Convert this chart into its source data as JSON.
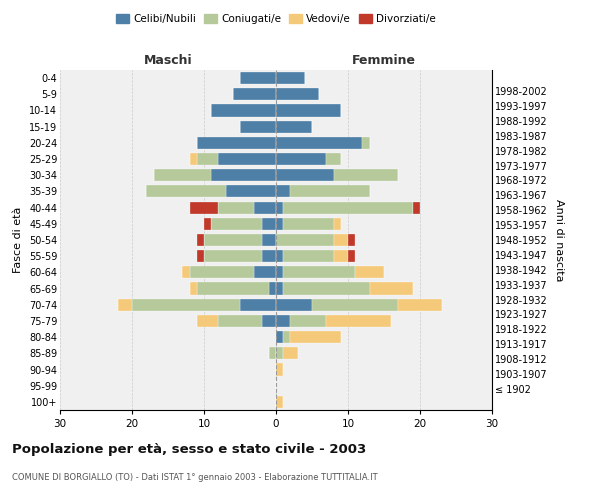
{
  "age_groups": [
    "100+",
    "95-99",
    "90-94",
    "85-89",
    "80-84",
    "75-79",
    "70-74",
    "65-69",
    "60-64",
    "55-59",
    "50-54",
    "45-49",
    "40-44",
    "35-39",
    "30-34",
    "25-29",
    "20-24",
    "15-19",
    "10-14",
    "5-9",
    "0-4"
  ],
  "birth_years": [
    "≤ 1902",
    "1903-1907",
    "1908-1912",
    "1913-1917",
    "1918-1922",
    "1923-1927",
    "1928-1932",
    "1933-1937",
    "1938-1942",
    "1943-1947",
    "1948-1952",
    "1953-1957",
    "1958-1962",
    "1963-1967",
    "1968-1972",
    "1973-1977",
    "1978-1982",
    "1983-1987",
    "1988-1992",
    "1993-1997",
    "1998-2002"
  ],
  "maschi": {
    "celibi": [
      0,
      0,
      0,
      0,
      0,
      2,
      5,
      1,
      3,
      2,
      2,
      2,
      3,
      7,
      9,
      8,
      11,
      5,
      9,
      6,
      5
    ],
    "coniugati": [
      0,
      0,
      0,
      1,
      0,
      6,
      15,
      10,
      9,
      8,
      8,
      7,
      5,
      11,
      8,
      3,
      0,
      0,
      0,
      0,
      0
    ],
    "vedovi": [
      0,
      0,
      0,
      0,
      0,
      3,
      2,
      1,
      1,
      0,
      0,
      0,
      0,
      0,
      0,
      1,
      0,
      0,
      0,
      0,
      0
    ],
    "divorziati": [
      0,
      0,
      0,
      0,
      0,
      0,
      0,
      0,
      0,
      1,
      1,
      1,
      4,
      0,
      0,
      0,
      0,
      0,
      0,
      0,
      0
    ]
  },
  "femmine": {
    "nubili": [
      0,
      0,
      0,
      0,
      1,
      2,
      5,
      1,
      1,
      1,
      0,
      1,
      1,
      2,
      8,
      7,
      12,
      5,
      9,
      6,
      4
    ],
    "coniugate": [
      0,
      0,
      0,
      1,
      1,
      5,
      12,
      12,
      10,
      7,
      8,
      7,
      18,
      11,
      9,
      2,
      1,
      0,
      0,
      0,
      0
    ],
    "vedove": [
      1,
      0,
      1,
      2,
      7,
      9,
      6,
      6,
      4,
      2,
      2,
      1,
      0,
      0,
      0,
      0,
      0,
      0,
      0,
      0,
      0
    ],
    "divorziate": [
      0,
      0,
      0,
      0,
      0,
      0,
      0,
      0,
      0,
      1,
      1,
      0,
      1,
      0,
      0,
      0,
      0,
      0,
      0,
      0,
      0
    ]
  },
  "colors": {
    "celibi": "#4e7fa6",
    "coniugati": "#b5c99a",
    "vedovi": "#f5c97a",
    "divorziati": "#c0392b"
  },
  "xlim": 30,
  "title": "Popolazione per età, sesso e stato civile - 2003",
  "subtitle": "COMUNE DI BORGIALLO (TO) - Dati ISTAT 1° gennaio 2003 - Elaborazione TUTTITALIA.IT",
  "xlabel_left": "Maschi",
  "xlabel_right": "Femmine",
  "ylabel_left": "Fasce di età",
  "ylabel_right": "Anni di nascita",
  "bg_color": "#ffffff",
  "grid_color": "#cccccc"
}
